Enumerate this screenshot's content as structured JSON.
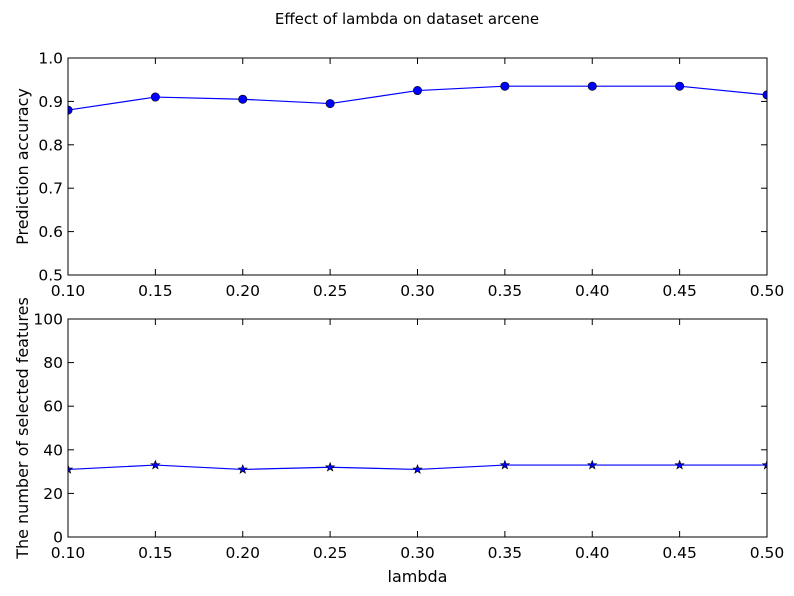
{
  "figure_title": "Effect of lambda on dataset arcene",
  "chart_data": [
    {
      "type": "line",
      "xlabel": "",
      "ylabel": "Prediction accuracy",
      "xlim": [
        0.1,
        0.5
      ],
      "ylim": [
        0.5,
        1.0
      ],
      "xticks": [
        "0.10",
        "0.15",
        "0.20",
        "0.25",
        "0.30",
        "0.35",
        "0.40",
        "0.45",
        "0.50"
      ],
      "yticks": [
        "0.5",
        "0.6",
        "0.7",
        "0.8",
        "0.9",
        "1.0"
      ],
      "grid": false,
      "marker": "circle",
      "color": "#0000ff",
      "series": [
        {
          "x": [
            0.1,
            0.15,
            0.2,
            0.25,
            0.3,
            0.35,
            0.4,
            0.45,
            0.5
          ],
          "values": [
            0.88,
            0.91,
            0.905,
            0.895,
            0.925,
            0.935,
            0.935,
            0.935,
            0.915
          ]
        }
      ]
    },
    {
      "type": "line",
      "xlabel": "lambda",
      "ylabel": "The number of selected features",
      "xlim": [
        0.1,
        0.5
      ],
      "ylim": [
        0,
        100
      ],
      "xticks": [
        "0.10",
        "0.15",
        "0.20",
        "0.25",
        "0.30",
        "0.35",
        "0.40",
        "0.45",
        "0.50"
      ],
      "yticks": [
        "0",
        "20",
        "40",
        "60",
        "80",
        "100"
      ],
      "grid": false,
      "marker": "star",
      "color": "#0000ff",
      "series": [
        {
          "x": [
            0.1,
            0.15,
            0.2,
            0.25,
            0.3,
            0.35,
            0.4,
            0.45,
            0.5
          ],
          "values": [
            31,
            33,
            31,
            32,
            31,
            33,
            33,
            33,
            33
          ]
        }
      ]
    }
  ]
}
